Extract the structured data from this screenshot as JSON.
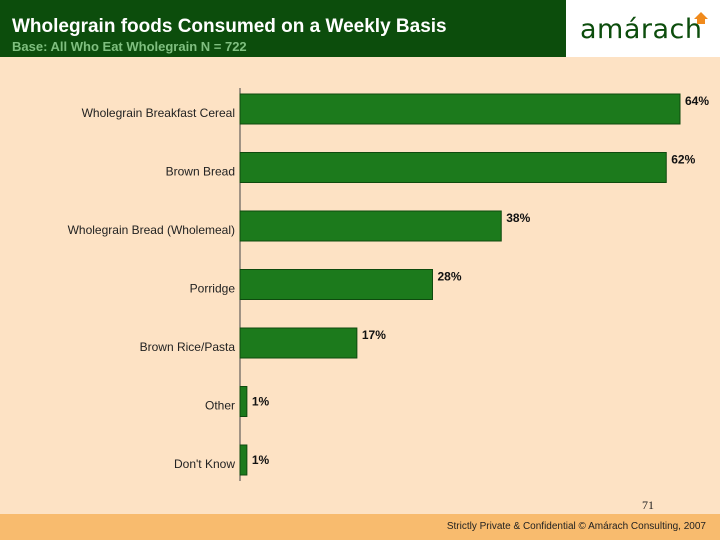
{
  "header": {
    "title": "Wholegrain foods Consumed on a Weekly Basis",
    "subtitle": "Base: All Who Eat Wholegrain N = 722"
  },
  "logo": {
    "text": "amárach"
  },
  "chart_data": {
    "type": "bar",
    "orientation": "horizontal",
    "categories": [
      "Wholegrain Breakfast Cereal",
      "Brown Bread",
      "Wholegrain Bread (Wholemeal)",
      "Porridge",
      "Brown Rice/Pasta",
      "Other",
      "Don't Know"
    ],
    "values": [
      64,
      62,
      38,
      28,
      17,
      1,
      1
    ],
    "value_labels": [
      "64%",
      "62%",
      "38%",
      "28%",
      "17%",
      "1%",
      "1%"
    ],
    "unit": "%",
    "xlim": [
      0,
      64
    ],
    "bar_color": "#1c7a1c"
  },
  "footer": {
    "page_number": "71",
    "text": "Strictly Private & Confidential © Amárach Consulting, 2007"
  },
  "colors": {
    "header_bg": "#0c4d0c",
    "background": "#fde2c4",
    "footer_bg": "#f8bb6e",
    "logo_mark": "#f08a1c"
  }
}
